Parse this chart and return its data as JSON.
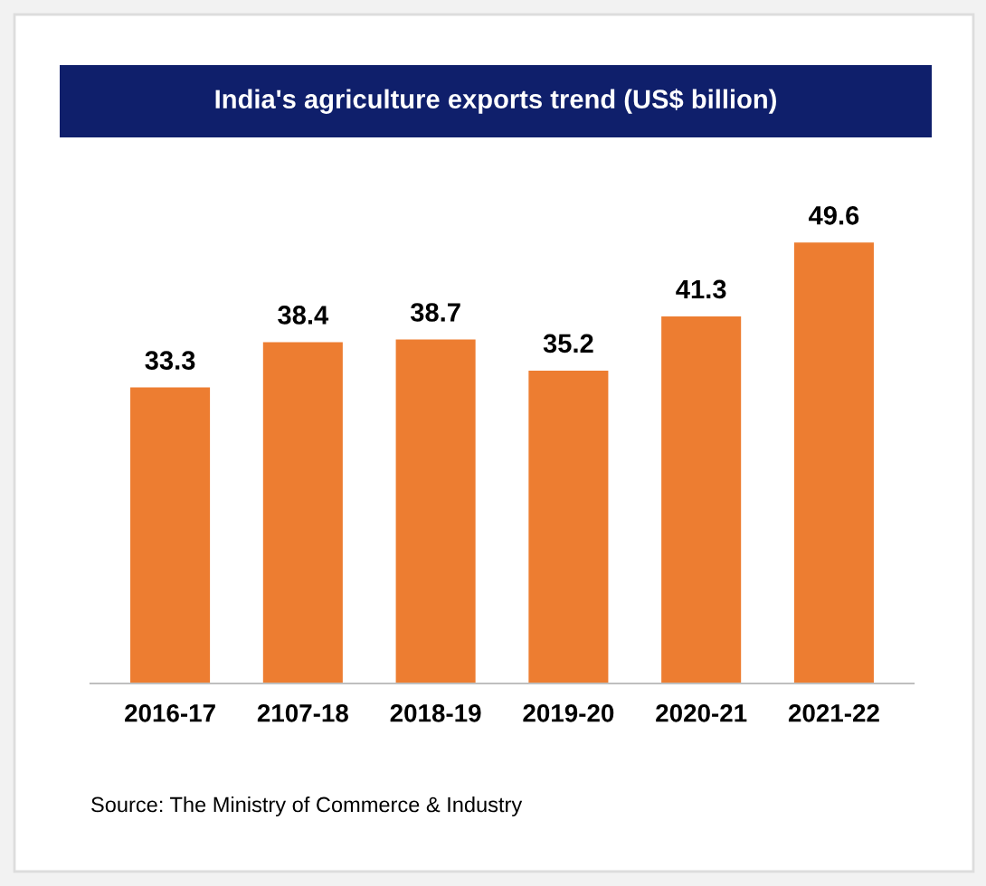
{
  "chart_data": {
    "type": "bar",
    "title": "India's agriculture exports trend (US$ billion)",
    "categories": [
      "2016-17",
      "2107-18",
      "2018-19",
      "2019-20",
      "2020-21",
      "2021-22"
    ],
    "values": [
      33.3,
      38.4,
      38.7,
      35.2,
      41.3,
      49.6
    ],
    "color": "#ed7d31",
    "data_labels": true,
    "grid": false,
    "legend": false,
    "annotations": [
      "Source: The Ministry of Commerce & Industry"
    ]
  }
}
